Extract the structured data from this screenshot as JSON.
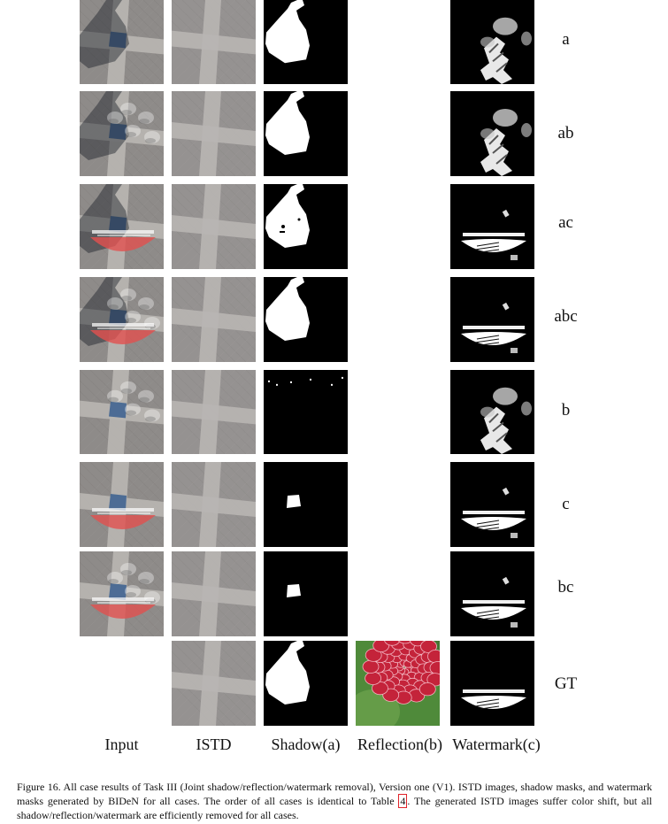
{
  "figure": {
    "rows": [
      {
        "label": "a",
        "input": "shadow",
        "shadow_mask": "shadow",
        "watermark_mask": "blob"
      },
      {
        "label": "ab",
        "input": "shadow-reflection",
        "shadow_mask": "shadow",
        "watermark_mask": "blob"
      },
      {
        "label": "ac",
        "input": "shadow-watermark",
        "shadow_mask": "shadow-dots",
        "watermark_mask": "ellipse"
      },
      {
        "label": "abc",
        "input": "shadow-reflection-watermark",
        "shadow_mask": "shadow",
        "watermark_mask": "ellipse"
      },
      {
        "label": "b",
        "input": "reflection",
        "shadow_mask": "noise",
        "watermark_mask": "blob"
      },
      {
        "label": "c",
        "input": "watermark",
        "shadow_mask": "small",
        "watermark_mask": "ellipse"
      },
      {
        "label": "bc",
        "input": "reflection-watermark",
        "shadow_mask": "small",
        "watermark_mask": "ellipse"
      },
      {
        "label": "GT",
        "input": "none",
        "shadow_mask": "shadow",
        "watermark_mask": "ellipse-gt"
      }
    ],
    "column_labels": [
      "Input",
      "ISTD",
      "Shadow(a)",
      "Reflection(b)",
      "Watermark(c)"
    ],
    "caption_before_ref": "Figure 16. All case results of Task III (Joint shadow/reflection/watermark removal), Version one (V1). ISTD images, shadow masks, and watermark masks generated by BIDeN for all cases. The order of all cases is identical to Table ",
    "caption_ref": "4",
    "caption_after_ref": ". The generated ISTD images suffer color shift, but all shadow/reflection/watermark are efficiently removed for all cases."
  },
  "colors": {
    "pavement": "#8e8b89",
    "cross": "#b9b6b2",
    "tile_blue": "#3a5f8f",
    "watermark_red": "#e2504f",
    "mask_white": "#ffffff",
    "mask_black": "#000000",
    "flower_red": "#c4233a",
    "leaf_green": "#4f8a3a"
  }
}
